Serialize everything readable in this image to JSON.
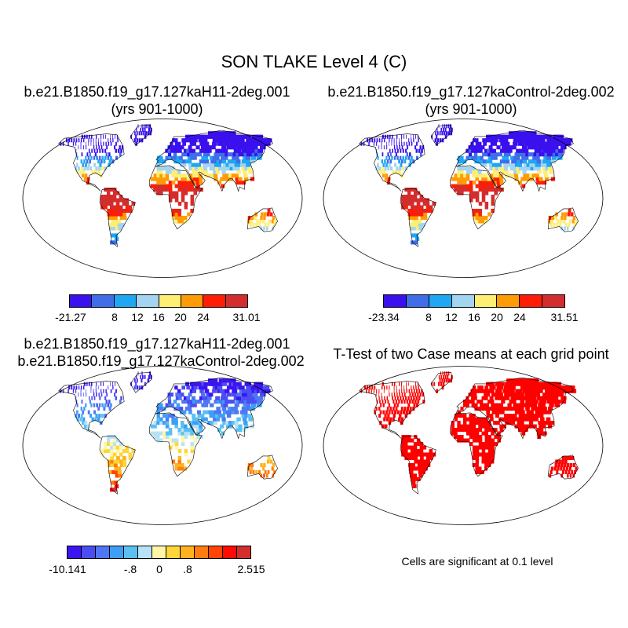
{
  "title": "SON TLAKE Level 4 (C)",
  "panels": [
    {
      "line1": "b.e21.B1850.f19_g17.127kaH11-2deg.001",
      "line2": "(yrs 901-1000)"
    },
    {
      "line1": "b.e21.B1850.f19_g17.127kaControl-2deg.002",
      "line2": "(yrs 901-1000)"
    },
    {
      "line1": "b.e21.B1850.f19_g17.127kaH11-2deg.001",
      "line2": "b.e21.B1850.f19_g17.127kaControl-2deg.002"
    },
    {
      "line1": "T-Test of two Case means at each grid point",
      "line2": ""
    }
  ],
  "colorbars": [
    {
      "colors": [
        "#3a10ee",
        "#3f6ee8",
        "#1fa7f4",
        "#a3d4f0",
        "#ffee74",
        "#ff9b06",
        "#ff1d06",
        "#d42d2d"
      ],
      "labels": [
        "-21.27",
        "8",
        "12",
        "16",
        "20",
        "24",
        "31.01"
      ]
    },
    {
      "colors": [
        "#3a10ee",
        "#3f6ee8",
        "#1fa7f4",
        "#a3d4f0",
        "#ffee74",
        "#ff9b06",
        "#ff1d06",
        "#d42d2d"
      ],
      "labels": [
        "-23.34",
        "8",
        "12",
        "16",
        "20",
        "24",
        "31.51"
      ]
    },
    {
      "colors": [
        "#3c14f0",
        "#4a4ef2",
        "#4f77f3",
        "#3e9ef5",
        "#5ac0f2",
        "#b8e2f5",
        "#fff7a8",
        "#ffd63a",
        "#ffb21e",
        "#ff7d0e",
        "#ff4505",
        "#ff0a05",
        "#d42d2d"
      ],
      "labels": [
        "-10.141",
        "-.8",
        "0",
        ".8",
        "2.515"
      ]
    }
  ],
  "significance_note": "Cells are significant at 0.1 level"
}
